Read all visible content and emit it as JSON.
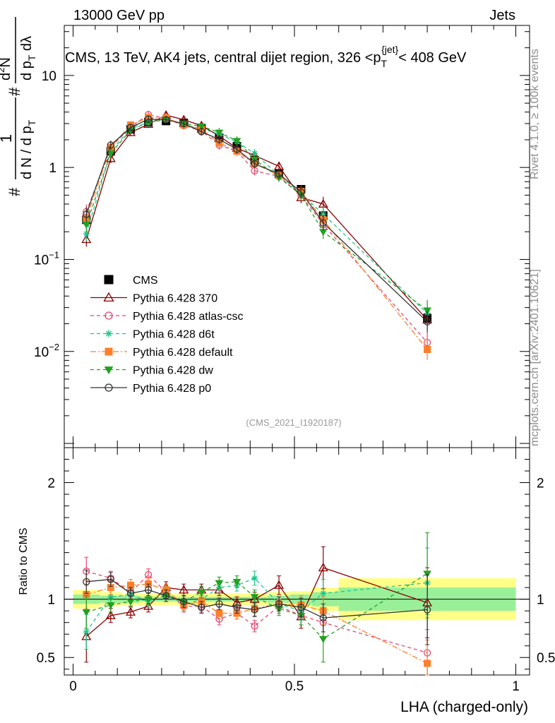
{
  "header": {
    "left_label": "13000 GeV pp",
    "right_label": "Jets"
  },
  "side_labels": {
    "rivet": "Rivet 4.1.0, ≥ 100k events",
    "source": "mcplots.cern.ch [arXiv:2401.10621]"
  },
  "chart_data": [
    {
      "type": "scatter",
      "panel": "main",
      "title_parts": {
        "before": "CMS, 13 TeV, AK4 jets, central dijet region, 326 <p",
        "sub": "T",
        "sup": "{jet}",
        "after": "< 408 GeV"
      },
      "ylabel": {
        "frac1_num": "1",
        "frac1_den_a": "d N / d p",
        "frac1_den_sub": "T",
        "frac2_num_a": "d",
        "frac2_num_sup": "2",
        "frac2_num_b": "N",
        "frac2_den_a": "d p",
        "frac2_den_sub": "T",
        "frac2_den_b": " dλ",
        "hash1": "#",
        "hash2": "#"
      },
      "yscale": "log",
      "ylim": [
        0.0009,
        35
      ],
      "xlim": [
        -0.02,
        1.0
      ],
      "ytick_labels": [
        {
          "value": 10,
          "mant": "10",
          "exp": ""
        },
        {
          "value": 1,
          "mant": "1",
          "exp": ""
        },
        {
          "value": 0.1,
          "mant": "10",
          "exp": "−1"
        },
        {
          "value": 0.01,
          "mant": "10",
          "exp": "−2"
        }
      ],
      "watermark": "(CMS_2021_I1920187)",
      "x": [
        0.03,
        0.085,
        0.13,
        0.17,
        0.21,
        0.25,
        0.29,
        0.33,
        0.37,
        0.41,
        0.465,
        0.515,
        0.565,
        0.8
      ],
      "series": [
        {
          "name": "CMS",
          "color": "#000000",
          "marker": "square-filled",
          "dash": "none",
          "values": [
            0.27,
            1.5,
            2.6,
            3.1,
            3.2,
            3.05,
            2.65,
            2.1,
            1.7,
            1.2,
            0.85,
            0.58,
            0.3,
            0.023
          ]
        },
        {
          "name": "Pythia 6.428 370",
          "color": "#8b0000",
          "marker": "triangle-open",
          "dash": "solid",
          "values": [
            0.165,
            1.25,
            2.4,
            2.95,
            3.7,
            3.3,
            2.85,
            2.2,
            1.62,
            1.35,
            1.03,
            0.47,
            0.4,
            0.022
          ]
        },
        {
          "name": "Pythia 6.428 atlas-csc",
          "color": "#e8466e",
          "marker": "circle-open",
          "dash": "dashed",
          "values": [
            0.33,
            1.65,
            2.75,
            3.75,
            3.4,
            2.85,
            2.5,
            1.75,
            1.5,
            0.92,
            0.8,
            0.5,
            0.24,
            0.0125
          ]
        },
        {
          "name": "Pythia 6.428 d6t",
          "color": "#1fc48e",
          "marker": "star",
          "dash": "dashed",
          "values": [
            0.19,
            1.48,
            2.7,
            3.05,
            3.4,
            2.9,
            2.65,
            2.3,
            1.9,
            1.42,
            0.82,
            0.52,
            0.31,
            0.026
          ]
        },
        {
          "name": "Pythia 6.428 default",
          "color": "#ff7f2a",
          "marker": "square-filled",
          "dash": "dashdot",
          "values": [
            0.28,
            1.65,
            2.9,
            3.5,
            3.45,
            2.9,
            2.6,
            1.85,
            1.5,
            1.1,
            0.82,
            0.55,
            0.27,
            0.0105
          ]
        },
        {
          "name": "Pythia 6.428 dw",
          "color": "#22a022",
          "marker": "triangle-down-filled",
          "dash": "dashed",
          "values": [
            0.24,
            1.42,
            2.55,
            3.1,
            3.3,
            3.0,
            2.8,
            2.4,
            1.95,
            1.22,
            0.78,
            0.5,
            0.2,
            0.028
          ]
        },
        {
          "name": "Pythia 6.428 p0",
          "color": "#333333",
          "marker": "circle-open",
          "dash": "solid",
          "values": [
            0.31,
            1.75,
            2.72,
            3.35,
            3.3,
            3.0,
            2.45,
            2.02,
            1.58,
            1.1,
            0.85,
            0.54,
            0.25,
            0.021
          ]
        }
      ],
      "rel_err": [
        0.2,
        0.12,
        0.1,
        0.1,
        0.1,
        0.1,
        0.1,
        0.12,
        0.12,
        0.12,
        0.12,
        0.15,
        0.2,
        0.3
      ]
    },
    {
      "type": "scatter",
      "panel": "ratio",
      "ylabel": "Ratio to CMS",
      "xlabel": "LHA (charged-only)",
      "ylim": [
        0.35,
        2.3
      ],
      "xlim": [
        -0.02,
        1.0
      ],
      "yticks": [
        0.5,
        1,
        2
      ],
      "ytick_labels": [
        "0.5",
        "1",
        "2"
      ],
      "xticks": [
        0,
        0.5,
        1
      ],
      "xtick_labels": [
        "0",
        "0.5",
        "1"
      ],
      "bands": [
        {
          "x0": 0.0,
          "x1": 0.06,
          "inner": 0.04,
          "outer": 0.08
        },
        {
          "x0": 0.06,
          "x1": 0.11,
          "inner": 0.03,
          "outer": 0.06
        },
        {
          "x0": 0.11,
          "x1": 0.15,
          "inner": 0.03,
          "outer": 0.05
        },
        {
          "x0": 0.15,
          "x1": 0.19,
          "inner": 0.02,
          "outer": 0.05
        },
        {
          "x0": 0.19,
          "x1": 0.23,
          "inner": 0.02,
          "outer": 0.05
        },
        {
          "x0": 0.23,
          "x1": 0.27,
          "inner": 0.02,
          "outer": 0.05
        },
        {
          "x0": 0.27,
          "x1": 0.31,
          "inner": 0.02,
          "outer": 0.05
        },
        {
          "x0": 0.31,
          "x1": 0.35,
          "inner": 0.02,
          "outer": 0.05
        },
        {
          "x0": 0.35,
          "x1": 0.39,
          "inner": 0.02,
          "outer": 0.05
        },
        {
          "x0": 0.39,
          "x1": 0.44,
          "inner": 0.02,
          "outer": 0.05
        },
        {
          "x0": 0.44,
          "x1": 0.49,
          "inner": 0.03,
          "outer": 0.06
        },
        {
          "x0": 0.49,
          "x1": 0.54,
          "inner": 0.04,
          "outer": 0.07
        },
        {
          "x0": 0.54,
          "x1": 0.6,
          "inner": 0.06,
          "outer": 0.1
        },
        {
          "x0": 0.6,
          "x1": 1.0,
          "inner": 0.1,
          "outer": 0.18
        }
      ],
      "x": [
        0.03,
        0.085,
        0.13,
        0.17,
        0.21,
        0.25,
        0.29,
        0.33,
        0.37,
        0.41,
        0.465,
        0.515,
        0.565,
        0.8
      ],
      "series": [
        {
          "name": "Pythia 6.428 370",
          "color": "#8b0000",
          "marker": "triangle-open",
          "dash": "solid",
          "values": [
            0.68,
            0.86,
            0.89,
            0.94,
            1.1,
            1.08,
            1.08,
            1.08,
            0.97,
            1.0,
            1.12,
            0.85,
            1.27,
            0.97
          ],
          "errors": [
            0.22,
            0.06,
            0.05,
            0.05,
            0.05,
            0.05,
            0.05,
            0.05,
            0.05,
            0.06,
            0.08,
            0.1,
            0.18,
            0.3
          ]
        },
        {
          "name": "Pythia 6.428 atlas-csc",
          "color": "#e8466e",
          "marker": "circle-open",
          "dash": "dashed",
          "values": [
            1.24,
            1.18,
            1.06,
            1.21,
            1.06,
            0.94,
            0.94,
            0.83,
            0.88,
            0.77,
            0.94,
            0.86,
            0.8,
            0.54
          ],
          "errors": [
            0.12,
            0.06,
            0.05,
            0.05,
            0.05,
            0.05,
            0.05,
            0.05,
            0.05,
            0.05,
            0.06,
            0.08,
            0.12,
            0.2
          ]
        },
        {
          "name": "Pythia 6.428 d6t",
          "color": "#1fc48e",
          "marker": "star",
          "dash": "dashed",
          "values": [
            0.72,
            1.02,
            1.04,
            0.98,
            1.06,
            0.95,
            1.0,
            1.1,
            1.12,
            1.18,
            0.96,
            0.9,
            1.05,
            1.14
          ],
          "errors": [
            0.15,
            0.06,
            0.05,
            0.05,
            0.05,
            0.05,
            0.05,
            0.05,
            0.05,
            0.06,
            0.06,
            0.08,
            0.12,
            0.3
          ]
        },
        {
          "name": "Pythia 6.428 default",
          "color": "#ff7f2a",
          "marker": "square-filled",
          "dash": "dashdot",
          "values": [
            1.04,
            1.1,
            1.12,
            1.13,
            1.08,
            0.95,
            0.98,
            0.88,
            0.88,
            0.92,
            0.96,
            0.95,
            0.9,
            0.45
          ],
          "errors": [
            0.12,
            0.06,
            0.05,
            0.05,
            0.05,
            0.05,
            0.05,
            0.05,
            0.05,
            0.06,
            0.06,
            0.08,
            0.12,
            0.2
          ]
        },
        {
          "name": "Pythia 6.428 dw",
          "color": "#22a022",
          "marker": "triangle-down-filled",
          "dash": "dashed",
          "values": [
            0.89,
            0.95,
            0.98,
            1.0,
            1.03,
            0.98,
            1.06,
            1.14,
            1.15,
            1.02,
            0.92,
            0.86,
            0.66,
            1.22
          ],
          "errors": [
            0.14,
            0.06,
            0.05,
            0.05,
            0.05,
            0.05,
            0.05,
            0.05,
            0.05,
            0.06,
            0.06,
            0.08,
            0.2,
            0.35
          ]
        },
        {
          "name": "Pythia 6.428 p0",
          "color": "#333333",
          "marker": "circle-open",
          "dash": "solid",
          "values": [
            1.15,
            1.17,
            1.05,
            1.08,
            1.03,
            0.98,
            0.93,
            0.96,
            0.93,
            0.91,
            0.96,
            0.93,
            0.84,
            0.91
          ],
          "errors": [
            0.1,
            0.06,
            0.05,
            0.05,
            0.05,
            0.05,
            0.05,
            0.05,
            0.05,
            0.06,
            0.06,
            0.08,
            0.12,
            0.3
          ]
        }
      ]
    }
  ]
}
